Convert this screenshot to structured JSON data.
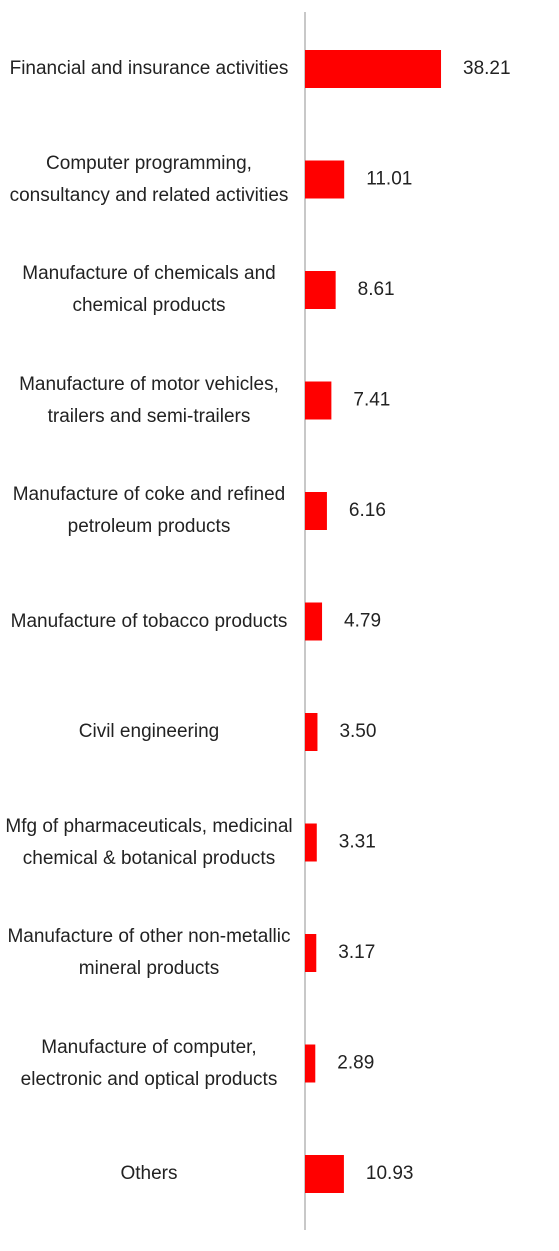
{
  "chart_data": {
    "type": "bar",
    "orientation": "horizontal",
    "color": "#ff0000",
    "categories": [
      "Financial and insurance activities",
      "Computer programming, consultancy and related activities",
      "Manufacture of chemicals and chemical products",
      "Manufacture of motor vehicles, trailers and semi-trailers",
      "Manufacture of coke and refined petroleum products",
      "Manufacture of tobacco products",
      "Civil engineering",
      "Mfg of pharmaceuticals, medicinal chemical & botanical products",
      "Manufacture of other non-metallic mineral products",
      "Manufacture of computer, electronic and optical products",
      "Others"
    ],
    "values": [
      38.21,
      11.01,
      8.61,
      7.41,
      6.16,
      4.79,
      3.5,
      3.31,
      3.17,
      2.89,
      10.93
    ],
    "value_labels": [
      "38.21",
      "11.01",
      "8.61",
      "7.41",
      "6.16",
      "4.79",
      "3.50",
      "3.31",
      "3.17",
      "2.89",
      "10.93"
    ]
  }
}
